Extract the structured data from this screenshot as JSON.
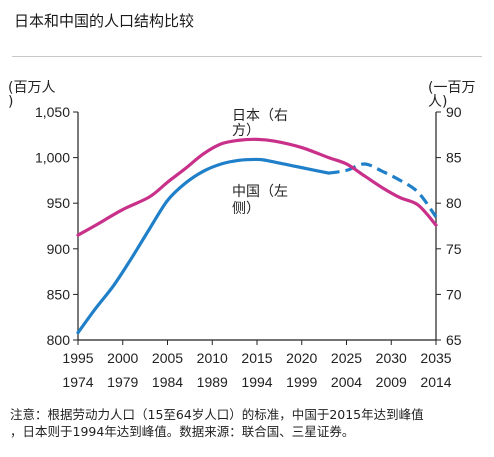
{
  "title": "日本和中国的人口结构比较",
  "footnote_line1": "注意：根据劳动力人口（15至64岁人口）的标准，中国于2015年达到峰值",
  "footnote_line2": "，日本则于1994年达到峰值。数据来源：联合国、三星证券。",
  "colors": {
    "china": "#1f7fc8",
    "japan": "#c8308a",
    "axis": "#222222",
    "rule": "#c8c8c8"
  },
  "chart_data": {
    "type": "line",
    "left_unit_line1": "(百万人",
    "left_unit_line2": ")",
    "right_unit_line1": "(一百万",
    "right_unit_line2": "人)",
    "x_ticks_china": [
      "1995",
      "2000",
      "2005",
      "2010",
      "2015",
      "2020",
      "2025",
      "2030",
      "2035"
    ],
    "x_ticks_japan": [
      "1974",
      "1979",
      "1984",
      "1989",
      "1994",
      "1999",
      "2004",
      "2009",
      "2014"
    ],
    "x_tick_values": [
      1995,
      2000,
      2005,
      2010,
      2015,
      2020,
      2025,
      2030,
      2035
    ],
    "xlim": [
      1995,
      2035
    ],
    "y_left_ticks": [
      "800",
      "850",
      "900",
      "950",
      "1,000",
      "1,050"
    ],
    "y_left_values": [
      800,
      850,
      900,
      950,
      1000,
      1050
    ],
    "ylim_left": [
      800,
      1050
    ],
    "y_right_ticks": [
      "65",
      "70",
      "75",
      "80",
      "85",
      "90"
    ],
    "y_right_values": [
      65,
      70,
      75,
      80,
      85,
      90
    ],
    "ylim_right": [
      65,
      90
    ],
    "series": [
      {
        "key": "china",
        "label_line1": "中国（左",
        "label_line2": "侧）",
        "axis": "left",
        "solid": {
          "x": [
            1995,
            1997,
            1999,
            2001,
            2003,
            2005,
            2007,
            2009,
            2011,
            2013,
            2015,
            2016,
            2018,
            2020,
            2022,
            2023
          ],
          "y": [
            808,
            835,
            860,
            890,
            922,
            953,
            972,
            985,
            993,
            997,
            998,
            997,
            993,
            989,
            985,
            983
          ]
        },
        "projected": {
          "x": [
            2023,
            2025,
            2027,
            2029,
            2031,
            2033,
            2035
          ],
          "y": [
            983,
            986,
            993,
            985,
            975,
            962,
            935
          ]
        }
      },
      {
        "key": "japan",
        "label_line1": "日本（右",
        "label_line2": "方）",
        "axis": "right",
        "solid": {
          "x": [
            1995,
            1997,
            2000,
            2003,
            2005,
            2007,
            2009,
            2011,
            2013,
            2015,
            2017,
            2020,
            2023,
            2025,
            2027,
            2029,
            2031,
            2033,
            2035
          ],
          "y": [
            76.5,
            77.6,
            79.3,
            80.7,
            82.3,
            83.8,
            85.4,
            86.5,
            86.9,
            87.0,
            86.8,
            86.1,
            85.0,
            84.3,
            83.0,
            81.7,
            80.6,
            79.8,
            77.6
          ]
        }
      }
    ]
  }
}
